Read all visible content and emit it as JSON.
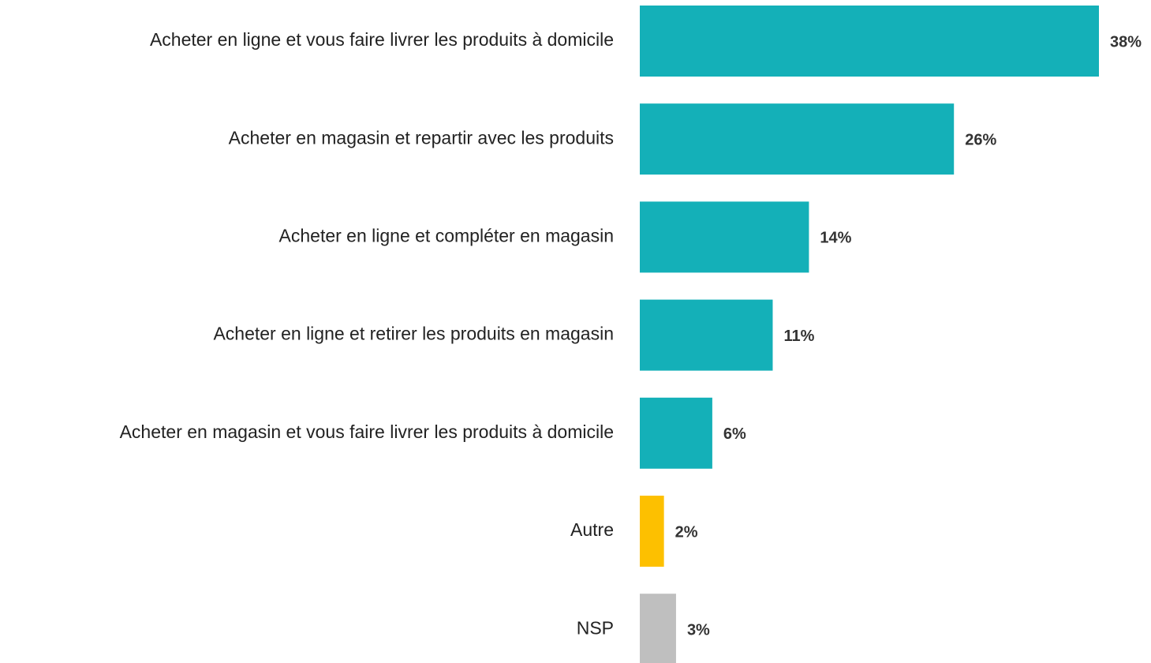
{
  "chart_data": {
    "type": "barh",
    "categories": [
      "Acheter en ligne et vous faire livrer les produits à domicile",
      "Acheter en magasin et repartir avec les produits",
      "Acheter en ligne et compléter en magasin",
      "Acheter en ligne et retirer les produits en magasin",
      "Acheter en magasin et vous faire livrer les produits à domicile",
      "Autre",
      "NSP"
    ],
    "values": [
      38,
      26,
      14,
      11,
      6,
      2,
      3
    ],
    "value_labels": [
      "38%",
      "26%",
      "14%",
      "11%",
      "6%",
      "2%",
      "3%"
    ],
    "colors": [
      "#14b0b8",
      "#14b0b8",
      "#14b0b8",
      "#14b0b8",
      "#14b0b8",
      "#fdc000",
      "#bfbfbf"
    ]
  }
}
